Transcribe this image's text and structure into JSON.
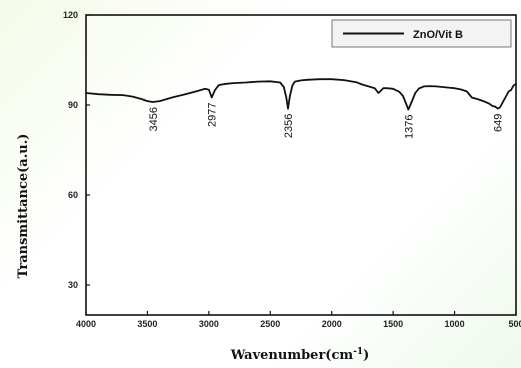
{
  "chart_data": {
    "type": "line",
    "title": "",
    "xlabel": "Wavenumber(cm",
    "xlabel_sup": "-1",
    "xlabel_close": ")",
    "ylabel": "Transmittance(a.u.)",
    "xlim": [
      4000,
      500
    ],
    "ylim": [
      20,
      120
    ],
    "x_reversed": true,
    "x_ticks": [
      4000,
      3500,
      3000,
      2500,
      2000,
      1500,
      1000,
      500
    ],
    "x_tick_labels": [
      "4000",
      "3500",
      "3000",
      "2500",
      "2000",
      "1500",
      "1000",
      "500"
    ],
    "y_ticks": [
      30,
      60,
      90,
      120
    ],
    "y_tick_labels": [
      "30",
      "60",
      "90",
      "120"
    ],
    "grid": false,
    "legend_position": "top-right",
    "series": [
      {
        "name": "ZnO/Vit B",
        "color": "#111111",
        "x": [
          4000,
          3900,
          3800,
          3700,
          3620,
          3550,
          3500,
          3456,
          3400,
          3300,
          3200,
          3100,
          3030,
          3000,
          2977,
          2950,
          2920,
          2900,
          2850,
          2800,
          2700,
          2600,
          2500,
          2420,
          2390,
          2370,
          2356,
          2340,
          2320,
          2300,
          2250,
          2200,
          2100,
          2000,
          1900,
          1800,
          1750,
          1700,
          1650,
          1620,
          1600,
          1580,
          1550,
          1500,
          1450,
          1420,
          1400,
          1376,
          1350,
          1320,
          1290,
          1250,
          1200,
          1150,
          1100,
          1050,
          1000,
          950,
          900,
          860,
          800,
          760,
          720,
          690,
          670,
          649,
          630,
          600,
          580,
          560,
          540,
          520,
          500
        ],
        "y": [
          94,
          93.6,
          93.4,
          93.3,
          92.8,
          92,
          91.3,
          91,
          91.3,
          92.5,
          93.5,
          94.6,
          95.4,
          95.1,
          92.5,
          95,
          96.6,
          96.8,
          97.1,
          97.3,
          97.5,
          97.8,
          97.9,
          97.5,
          96,
          92.5,
          88.8,
          93,
          96.5,
          97.8,
          98.2,
          98.4,
          98.6,
          98.6,
          98.3,
          97.6,
          96.8,
          96.2,
          95.6,
          94,
          94.8,
          95.6,
          95.6,
          95.4,
          94.4,
          93,
          91,
          88.5,
          91,
          94,
          95.5,
          96.2,
          96.3,
          96.2,
          96,
          95.8,
          95.6,
          95.2,
          94.5,
          92.5,
          91.8,
          91.2,
          90.5,
          89.6,
          89.5,
          88.8,
          89.2,
          91.5,
          93,
          94.5,
          95,
          96.5,
          97
        ]
      }
    ],
    "annotations": [
      {
        "text": "3456",
        "x": 3456,
        "y": 91
      },
      {
        "text": "2977",
        "x": 2977,
        "y": 92.5
      },
      {
        "text": "2356",
        "x": 2356,
        "y": 88.8
      },
      {
        "text": "1376",
        "x": 1376,
        "y": 88.5
      },
      {
        "text": "649",
        "x": 649,
        "y": 88.8
      }
    ]
  }
}
